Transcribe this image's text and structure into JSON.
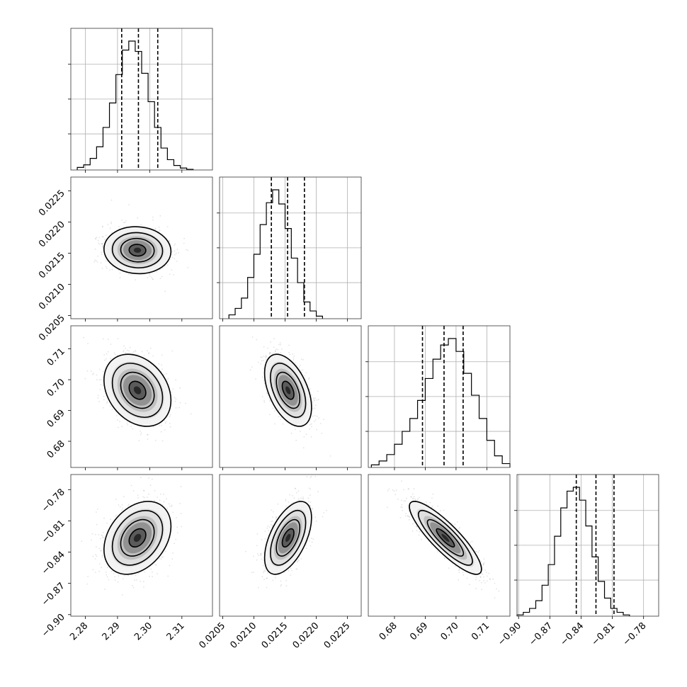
{
  "chart_data": {
    "type": "corner",
    "parameters": [
      {
        "range": [
          2.2755,
          2.3195
        ],
        "ticks": [
          "2.28",
          "2.29",
          "2.30",
          "2.31"
        ],
        "tick_values": [
          2.28,
          2.29,
          2.3,
          2.31
        ]
      },
      {
        "range": [
          0.02045,
          0.02272
        ],
        "ticks": [
          "0.0205",
          "0.0210",
          "0.0215",
          "0.0220",
          "0.0225"
        ],
        "tick_values": [
          0.0205,
          0.021,
          0.0215,
          0.022,
          0.0225
        ]
      },
      {
        "range": [
          0.6715,
          0.7175
        ],
        "ticks": [
          "0.68",
          "0.69",
          "0.70",
          "0.71"
        ],
        "tick_values": [
          0.68,
          0.69,
          0.7,
          0.71
        ]
      },
      {
        "range": [
          -0.9015,
          -0.7655
        ],
        "ticks": [
          "−0.90",
          "−0.87",
          "−0.84",
          "−0.81",
          "−0.78"
        ],
        "tick_values": [
          -0.9,
          -0.87,
          -0.84,
          -0.81,
          -0.78
        ]
      }
    ],
    "histograms": [
      {
        "bin_start": 2.2775,
        "bin_width": 0.002,
        "heights": [
          0.02,
          0.04,
          0.09,
          0.18,
          0.33,
          0.52,
          0.74,
          0.93,
          1.0,
          0.92,
          0.75,
          0.53,
          0.33,
          0.17,
          0.08,
          0.035,
          0.015,
          0.005
        ],
        "quantiles": [
          2.2913,
          2.2965,
          2.3025
        ]
      },
      {
        "bin_start": 0.0206,
        "bin_width": 0.0001,
        "heights": [
          0.03,
          0.08,
          0.16,
          0.32,
          0.5,
          0.73,
          0.9,
          1.0,
          0.89,
          0.7,
          0.47,
          0.28,
          0.13,
          0.06,
          0.02
        ],
        "quantiles": [
          0.02128,
          0.02154,
          0.02181
        ]
      },
      {
        "bin_start": 0.6725,
        "bin_width": 0.0025,
        "heights": [
          0.02,
          0.05,
          0.1,
          0.18,
          0.28,
          0.38,
          0.52,
          0.69,
          0.84,
          0.95,
          1.0,
          0.9,
          0.73,
          0.56,
          0.38,
          0.21,
          0.09,
          0.03
        ],
        "quantiles": [
          0.6891,
          0.6961,
          0.7023
        ]
      },
      {
        "bin_start": -0.9015,
        "bin_width": 0.006,
        "heights": [
          0.01,
          0.03,
          0.06,
          0.12,
          0.24,
          0.4,
          0.62,
          0.84,
          0.97,
          1.0,
          0.9,
          0.7,
          0.46,
          0.27,
          0.14,
          0.06,
          0.03,
          0.01
        ],
        "quantiles": [
          -0.8446,
          -0.8257,
          -0.8084
        ]
      },
      {
        "note": ""
      }
    ],
    "density_pairs": [
      {
        "x": 0,
        "y": 1,
        "mean": [
          2.2962,
          0.021548
        ],
        "sd": [
          0.0052,
          0.000188
        ],
        "corr": -0.05
      },
      {
        "x": 0,
        "y": 2,
        "mean": [
          2.2962,
          0.69655
        ],
        "sd": [
          0.0052,
          0.00585
        ],
        "corr": -0.28
      },
      {
        "x": 1,
        "y": 2,
        "mean": [
          0.021548,
          0.69655
        ],
        "sd": [
          0.000188,
          0.00585
        ],
        "corr": -0.48
      },
      {
        "x": 0,
        "y": 3,
        "mean": [
          2.2962,
          -0.8263
        ],
        "sd": [
          0.0052,
          0.0175
        ],
        "corr": 0.32
      },
      {
        "x": 1,
        "y": 3,
        "mean": [
          0.021548,
          -0.8263
        ],
        "sd": [
          0.000188,
          0.0175
        ],
        "corr": 0.55
      },
      {
        "x": 2,
        "y": 3,
        "mean": [
          0.69655,
          -0.8263
        ],
        "sd": [
          0.00585,
          0.0175
        ],
        "corr": -0.86
      }
    ],
    "grid": true,
    "contour_levels_sigma": [
      0.5,
      1.0,
      1.5,
      2.0
    ],
    "style": {
      "hist_color": "#000000",
      "point_color": "#808080",
      "density_colormap": [
        "#ffffff",
        "#000000"
      ],
      "frame_color": "#333333",
      "grid_color": "#b0b0b0"
    }
  }
}
